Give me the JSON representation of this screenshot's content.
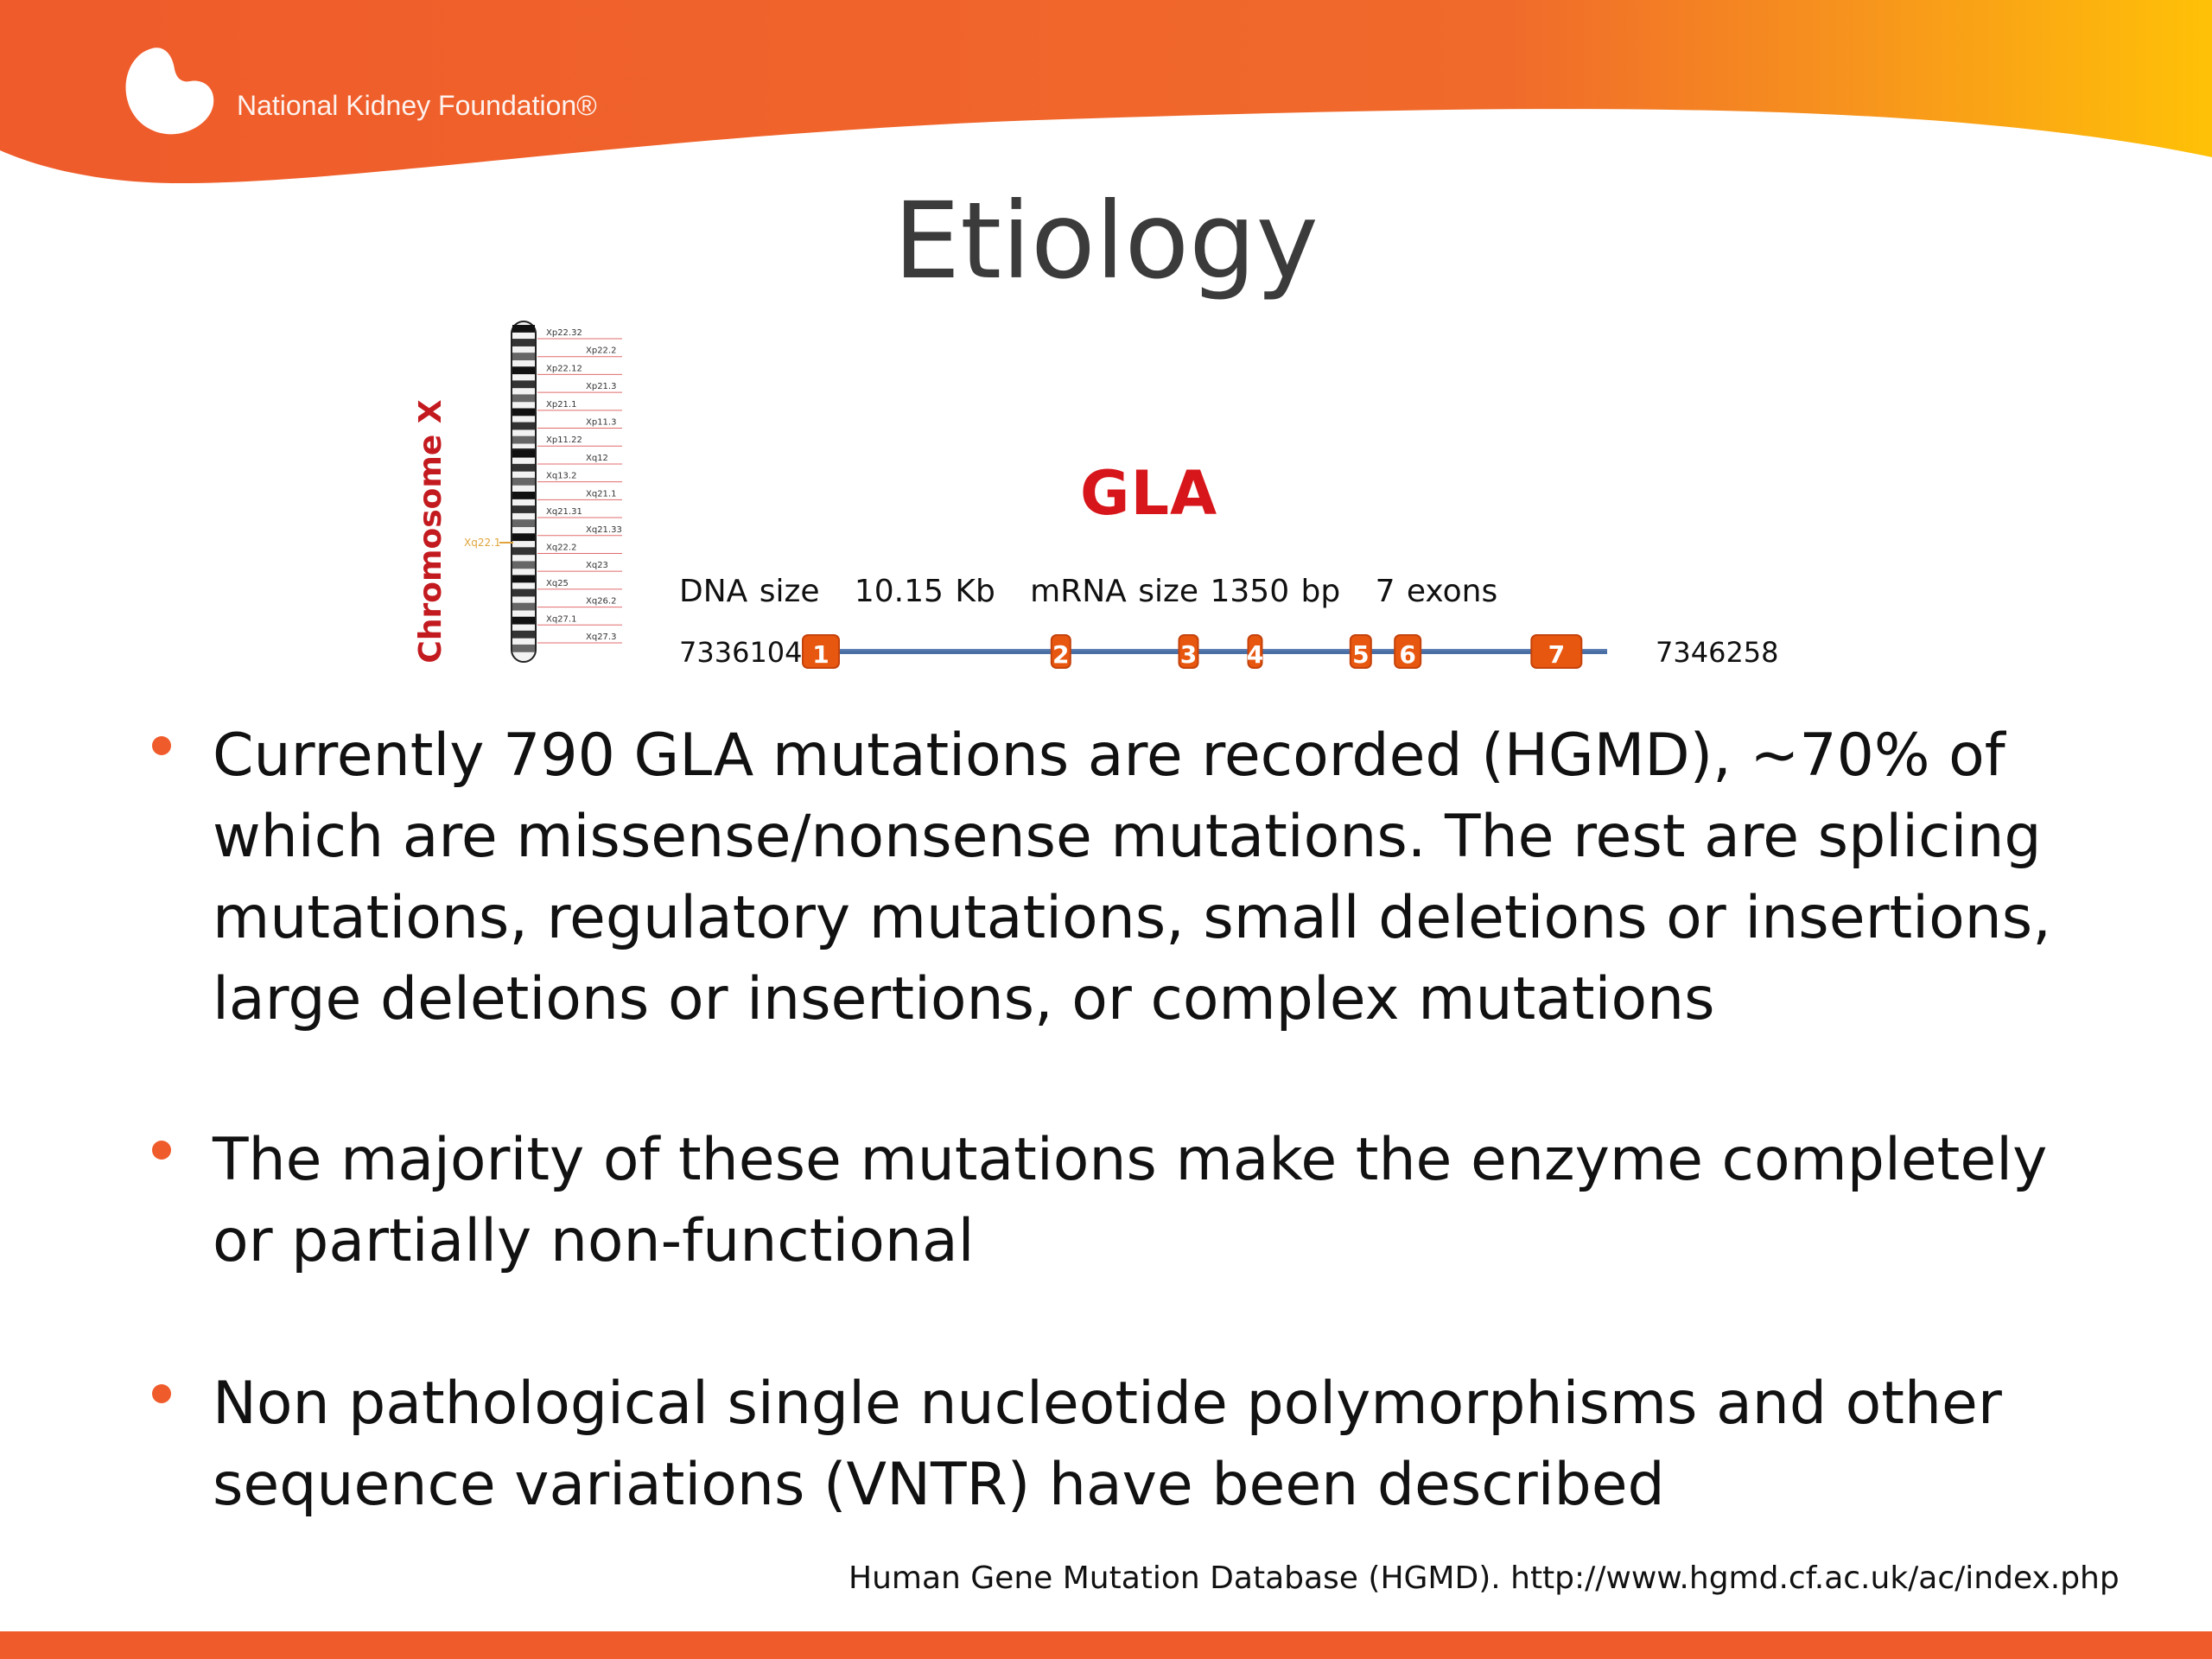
{
  "header": {
    "brand_name": "National Kidney Foundation®",
    "colors": {
      "orange": "#EF5B2B",
      "orange_2": "#F06A2B",
      "yellow": "#FFC107"
    }
  },
  "slide": {
    "title": "Etiology"
  },
  "figure": {
    "chromosome_label": "Chromosome X",
    "chromosome_highlight_band": "Xq22.1",
    "band_labels": [
      "Xp22.32",
      "Xp22.2",
      "Xp22.12",
      "Xp21.3",
      "Xp21.1",
      "Xp11.3",
      "Xp11.22",
      "Xq12",
      "Xq13.2",
      "Xq21.1",
      "Xq21.31",
      "Xq21.33",
      "Xq22.2",
      "Xq23",
      "Xq25",
      "Xq26.2",
      "Xq27.1",
      "Xq27.3"
    ],
    "gene": {
      "name": "GLA",
      "stats_line": "DNA size   10.15 Kb   mRNA size 1350 bp   7 exons",
      "start_coordinate": "7336104",
      "end_coordinate": "7346258",
      "exons": [
        {
          "label": "1",
          "position": 7336104
        },
        {
          "label": "2",
          "position": 7339170
        },
        {
          "label": "3",
          "position": 7340800
        },
        {
          "label": "4",
          "position": 7341650
        },
        {
          "label": "5",
          "position": 7343000
        },
        {
          "label": "6",
          "position": 7343600
        },
        {
          "label": "7",
          "position": 7345500
        }
      ],
      "colors": {
        "exon_fill": "#E8570F",
        "exon_fill_light": "#F39B3A",
        "line": "#4A6FA5",
        "gene_name": "#D7161B"
      }
    }
  },
  "bullets": [
    {
      "text": "Currently 790 GLA mutations are recorded (HGMD), ~70% of which are missense/nonsense mutations. The rest are splicing mutations, regulatory mutations, small deletions or insertions, large deletions or insertions, or complex mutations"
    },
    {
      "text": "The majority of these mutations make the enzyme completely or partially non-functional"
    },
    {
      "text": "Non pathological single nucleotide polymorphisms and other sequence variations (VNTR) have been described"
    }
  ],
  "citation": "Human Gene Mutation Database (HGMD). http://www.hgmd.cf.ac.uk/ac/index.php"
}
